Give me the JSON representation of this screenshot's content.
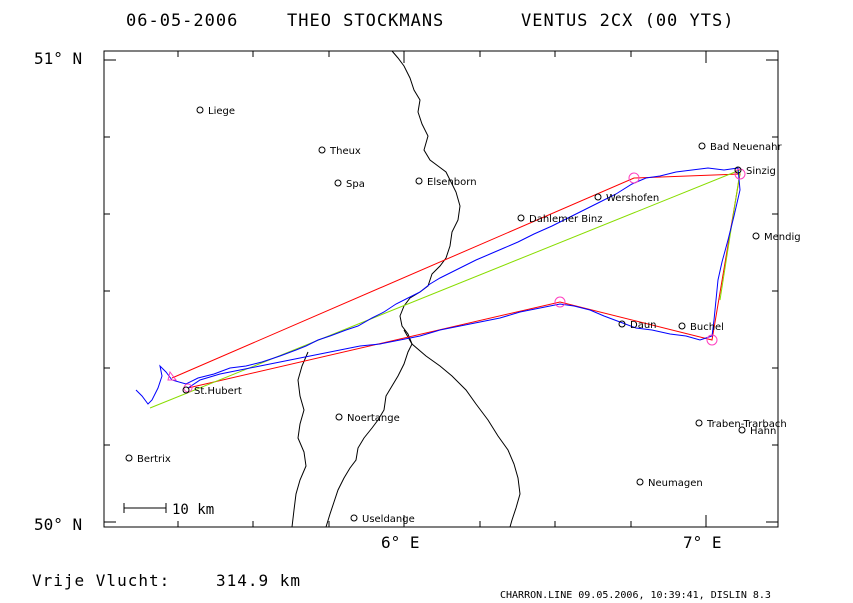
{
  "header": {
    "date": "06-05-2006",
    "pilot": "THEO STOCKMANS",
    "glider": "VENTUS 2CX (00 YTS)"
  },
  "axes": {
    "lat_top": "51° N",
    "lat_bottom": "50° N",
    "lon_6": "6° E",
    "lon_7": "7° E"
  },
  "scale_bar": {
    "label": "10 km"
  },
  "footer": {
    "distance_label": "Vrije Vlucht:",
    "distance_value": "314.9 km",
    "credits": "CHARRON.LINE 09.05.2006, 10:39:41, DISLIN 8.3"
  },
  "towns": [
    {
      "name": "Liege"
    },
    {
      "name": "Theux"
    },
    {
      "name": "Spa"
    },
    {
      "name": "Elsenborn"
    },
    {
      "name": "Wershofen"
    },
    {
      "name": "Bad Neuenahr"
    },
    {
      "name": "Sinzig"
    },
    {
      "name": "Dahlemer Binz"
    },
    {
      "name": "Mendig"
    },
    {
      "name": "Daun"
    },
    {
      "name": "Buchel"
    },
    {
      "name": "St.Hubert"
    },
    {
      "name": "Noertange"
    },
    {
      "name": "Bertrix"
    },
    {
      "name": "Traben-Trarbach"
    },
    {
      "name": "Hahn"
    },
    {
      "name": "Neumagen"
    },
    {
      "name": "Useldange"
    }
  ],
  "colors": {
    "frame": "#000000",
    "border_line": "#000000",
    "track": "#0000ff",
    "task_red": "#ff0000",
    "task_green": "#88dd00",
    "turnpoint": "#ff40c0"
  }
}
